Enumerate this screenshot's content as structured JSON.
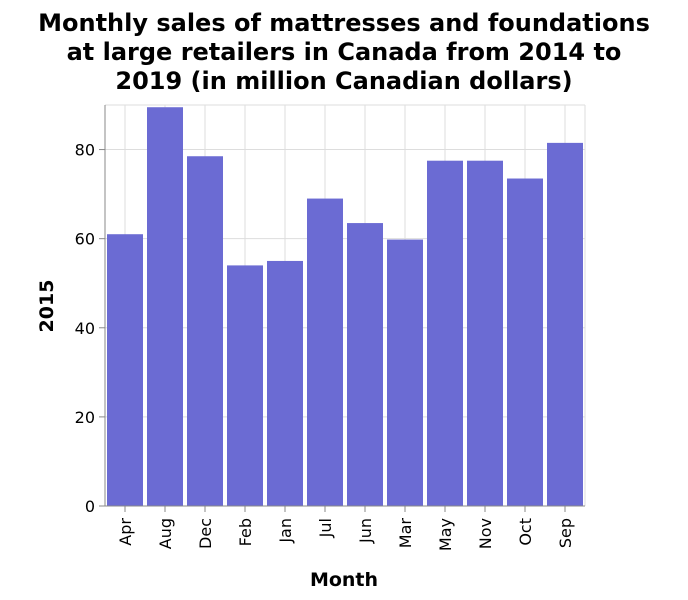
{
  "chart_data": {
    "type": "bar",
    "title_lines": [
      "Monthly sales of mattresses and foundations",
      "at large retailers in Canada from 2014 to",
      "2019 (in million Canadian dollars)"
    ],
    "xlabel": "Month",
    "ylabel": "2015",
    "categories": [
      "Apr",
      "Aug",
      "Dec",
      "Feb",
      "Jan",
      "Jul",
      "Jun",
      "Mar",
      "May",
      "Nov",
      "Oct",
      "Sep"
    ],
    "values": [
      61,
      89.5,
      78.5,
      54,
      55,
      69,
      63.5,
      59.8,
      77.5,
      77.5,
      73.5,
      81.5
    ],
    "yticks": [
      0,
      20,
      40,
      60,
      80
    ],
    "ylim": [
      0,
      90
    ],
    "grid": true,
    "bar_color": "#6b6bd3"
  }
}
